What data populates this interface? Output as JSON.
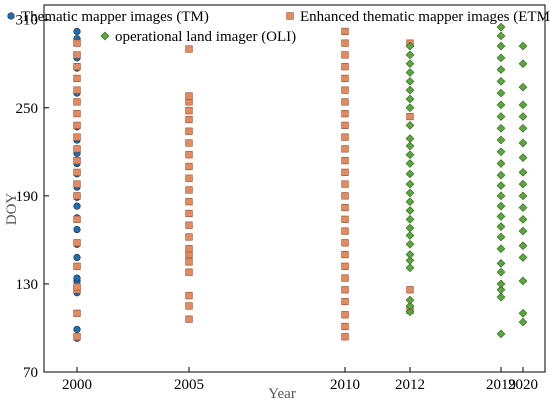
{
  "chart_data": {
    "type": "scatter",
    "xlabel": "Year",
    "ylabel": "DOY",
    "x_ticks": [
      2000,
      2005,
      2010,
      2012,
      2019,
      2020
    ],
    "y_ticks": [
      70,
      130,
      190,
      250,
      310
    ],
    "ylim": [
      70,
      320
    ],
    "grid": false,
    "legend_position": "top",
    "series": [
      {
        "name": "Thematic mapper images (TM)",
        "color": "#1f6db0",
        "marker": "circle",
        "points": [
          {
            "x": 2000,
            "y": 93
          },
          {
            "x": 2000,
            "y": 99
          },
          {
            "x": 2000,
            "y": 124
          },
          {
            "x": 2000,
            "y": 132
          },
          {
            "x": 2000,
            "y": 134
          },
          {
            "x": 2000,
            "y": 148
          },
          {
            "x": 2000,
            "y": 157
          },
          {
            "x": 2000,
            "y": 167
          },
          {
            "x": 2000,
            "y": 175
          },
          {
            "x": 2000,
            "y": 183
          },
          {
            "x": 2000,
            "y": 189
          },
          {
            "x": 2000,
            "y": 196
          },
          {
            "x": 2000,
            "y": 205
          },
          {
            "x": 2000,
            "y": 212
          },
          {
            "x": 2000,
            "y": 219
          },
          {
            "x": 2000,
            "y": 222
          },
          {
            "x": 2000,
            "y": 228
          },
          {
            "x": 2000,
            "y": 237
          },
          {
            "x": 2000,
            "y": 260
          },
          {
            "x": 2000,
            "y": 277
          },
          {
            "x": 2000,
            "y": 284
          },
          {
            "x": 2000,
            "y": 297
          },
          {
            "x": 2000,
            "y": 302
          }
        ]
      },
      {
        "name": "Enhanced thematic mapper images (ETM)",
        "color": "#e58a5e",
        "marker": "square",
        "points": [
          {
            "x": 2000,
            "y": 94
          },
          {
            "x": 2000,
            "y": 110
          },
          {
            "x": 2000,
            "y": 126
          },
          {
            "x": 2000,
            "y": 128
          },
          {
            "x": 2000,
            "y": 142
          },
          {
            "x": 2000,
            "y": 158
          },
          {
            "x": 2000,
            "y": 174
          },
          {
            "x": 2000,
            "y": 190
          },
          {
            "x": 2000,
            "y": 198
          },
          {
            "x": 2000,
            "y": 206
          },
          {
            "x": 2000,
            "y": 214
          },
          {
            "x": 2000,
            "y": 222
          },
          {
            "x": 2000,
            "y": 230
          },
          {
            "x": 2000,
            "y": 238
          },
          {
            "x": 2000,
            "y": 246
          },
          {
            "x": 2000,
            "y": 254
          },
          {
            "x": 2000,
            "y": 262
          },
          {
            "x": 2000,
            "y": 270
          },
          {
            "x": 2000,
            "y": 278
          },
          {
            "x": 2000,
            "y": 286
          },
          {
            "x": 2000,
            "y": 294
          },
          {
            "x": 2005,
            "y": 106
          },
          {
            "x": 2005,
            "y": 115
          },
          {
            "x": 2005,
            "y": 122
          },
          {
            "x": 2005,
            "y": 138
          },
          {
            "x": 2005,
            "y": 145
          },
          {
            "x": 2005,
            "y": 150
          },
          {
            "x": 2005,
            "y": 154
          },
          {
            "x": 2005,
            "y": 162
          },
          {
            "x": 2005,
            "y": 170
          },
          {
            "x": 2005,
            "y": 178
          },
          {
            "x": 2005,
            "y": 186
          },
          {
            "x": 2005,
            "y": 194
          },
          {
            "x": 2005,
            "y": 202
          },
          {
            "x": 2005,
            "y": 210
          },
          {
            "x": 2005,
            "y": 218
          },
          {
            "x": 2005,
            "y": 226
          },
          {
            "x": 2005,
            "y": 234
          },
          {
            "x": 2005,
            "y": 242
          },
          {
            "x": 2005,
            "y": 248
          },
          {
            "x": 2005,
            "y": 254
          },
          {
            "x": 2005,
            "y": 258
          },
          {
            "x": 2005,
            "y": 290
          },
          {
            "x": 2010,
            "y": 94
          },
          {
            "x": 2010,
            "y": 101
          },
          {
            "x": 2010,
            "y": 109
          },
          {
            "x": 2010,
            "y": 118
          },
          {
            "x": 2010,
            "y": 126
          },
          {
            "x": 2010,
            "y": 134
          },
          {
            "x": 2010,
            "y": 142
          },
          {
            "x": 2010,
            "y": 150
          },
          {
            "x": 2010,
            "y": 158
          },
          {
            "x": 2010,
            "y": 166
          },
          {
            "x": 2010,
            "y": 174
          },
          {
            "x": 2010,
            "y": 182
          },
          {
            "x": 2010,
            "y": 190
          },
          {
            "x": 2010,
            "y": 198
          },
          {
            "x": 2010,
            "y": 206
          },
          {
            "x": 2010,
            "y": 214
          },
          {
            "x": 2010,
            "y": 222
          },
          {
            "x": 2010,
            "y": 230
          },
          {
            "x": 2010,
            "y": 238
          },
          {
            "x": 2010,
            "y": 246
          },
          {
            "x": 2010,
            "y": 254
          },
          {
            "x": 2010,
            "y": 262
          },
          {
            "x": 2010,
            "y": 270
          },
          {
            "x": 2010,
            "y": 278
          },
          {
            "x": 2010,
            "y": 286
          },
          {
            "x": 2010,
            "y": 294
          },
          {
            "x": 2010,
            "y": 302
          },
          {
            "x": 2012,
            "y": 112
          },
          {
            "x": 2012,
            "y": 126
          },
          {
            "x": 2012,
            "y": 244
          },
          {
            "x": 2012,
            "y": 294
          }
        ]
      },
      {
        "name": "operational land imager (OLI)",
        "color": "#5aa83c",
        "marker": "diamond",
        "points": [
          {
            "x": 2012,
            "y": 111
          },
          {
            "x": 2012,
            "y": 115
          },
          {
            "x": 2012,
            "y": 119
          },
          {
            "x": 2012,
            "y": 141
          },
          {
            "x": 2012,
            "y": 146
          },
          {
            "x": 2012,
            "y": 150
          },
          {
            "x": 2012,
            "y": 157
          },
          {
            "x": 2012,
            "y": 163
          },
          {
            "x": 2012,
            "y": 168
          },
          {
            "x": 2012,
            "y": 174
          },
          {
            "x": 2012,
            "y": 180
          },
          {
            "x": 2012,
            "y": 186
          },
          {
            "x": 2012,
            "y": 192
          },
          {
            "x": 2012,
            "y": 198
          },
          {
            "x": 2012,
            "y": 205
          },
          {
            "x": 2012,
            "y": 212
          },
          {
            "x": 2012,
            "y": 218
          },
          {
            "x": 2012,
            "y": 224
          },
          {
            "x": 2012,
            "y": 229
          },
          {
            "x": 2012,
            "y": 238
          },
          {
            "x": 2012,
            "y": 250
          },
          {
            "x": 2012,
            "y": 256
          },
          {
            "x": 2012,
            "y": 262
          },
          {
            "x": 2012,
            "y": 268
          },
          {
            "x": 2012,
            "y": 274
          },
          {
            "x": 2012,
            "y": 280
          },
          {
            "x": 2012,
            "y": 286
          },
          {
            "x": 2012,
            "y": 292
          },
          {
            "x": 2019,
            "y": 96
          },
          {
            "x": 2019,
            "y": 121
          },
          {
            "x": 2019,
            "y": 126
          },
          {
            "x": 2019,
            "y": 130
          },
          {
            "x": 2019,
            "y": 138
          },
          {
            "x": 2019,
            "y": 144
          },
          {
            "x": 2019,
            "y": 154
          },
          {
            "x": 2019,
            "y": 162
          },
          {
            "x": 2019,
            "y": 169
          },
          {
            "x": 2019,
            "y": 176
          },
          {
            "x": 2019,
            "y": 183
          },
          {
            "x": 2019,
            "y": 190
          },
          {
            "x": 2019,
            "y": 197
          },
          {
            "x": 2019,
            "y": 204
          },
          {
            "x": 2019,
            "y": 212
          },
          {
            "x": 2019,
            "y": 220
          },
          {
            "x": 2019,
            "y": 228
          },
          {
            "x": 2019,
            "y": 236
          },
          {
            "x": 2019,
            "y": 244
          },
          {
            "x": 2019,
            "y": 252
          },
          {
            "x": 2019,
            "y": 260
          },
          {
            "x": 2019,
            "y": 268
          },
          {
            "x": 2019,
            "y": 276
          },
          {
            "x": 2019,
            "y": 284
          },
          {
            "x": 2019,
            "y": 292
          },
          {
            "x": 2019,
            "y": 299
          },
          {
            "x": 2019,
            "y": 305
          },
          {
            "x": 2020,
            "y": 104
          },
          {
            "x": 2020,
            "y": 110
          },
          {
            "x": 2020,
            "y": 132
          },
          {
            "x": 2020,
            "y": 148
          },
          {
            "x": 2020,
            "y": 156
          },
          {
            "x": 2020,
            "y": 166
          },
          {
            "x": 2020,
            "y": 174
          },
          {
            "x": 2020,
            "y": 182
          },
          {
            "x": 2020,
            "y": 190
          },
          {
            "x": 2020,
            "y": 198
          },
          {
            "x": 2020,
            "y": 206
          },
          {
            "x": 2020,
            "y": 216
          },
          {
            "x": 2020,
            "y": 226
          },
          {
            "x": 2020,
            "y": 236
          },
          {
            "x": 2020,
            "y": 244
          },
          {
            "x": 2020,
            "y": 252
          },
          {
            "x": 2020,
            "y": 264
          },
          {
            "x": 2020,
            "y": 280
          },
          {
            "x": 2020,
            "y": 292
          }
        ]
      }
    ]
  }
}
